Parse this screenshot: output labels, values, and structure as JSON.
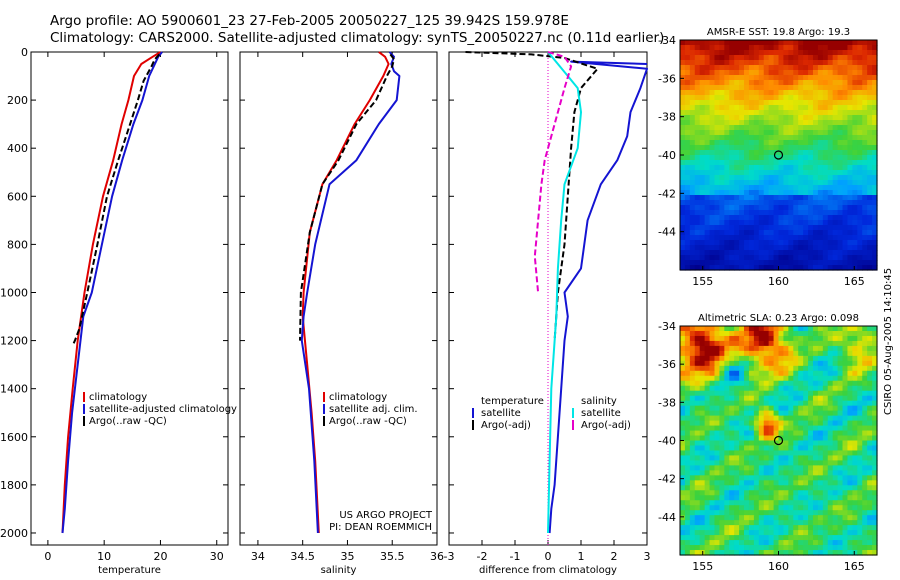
{
  "header": {
    "line1": "Argo profile: AO 5900601_23 27-Feb-2005 20050227_125 39.942S 159.978E",
    "line2": "Climatology: CARS2000. Satellite-adjusted climatology: synTS_20050227.nc (0.11d earlier)"
  },
  "credit": "CSIRO 05-Aug-2005 14:10:45",
  "project": {
    "line1": "US ARGO PROJECT",
    "line2": "PI: DEAN ROEMMICH"
  },
  "colors": {
    "climatology": "#e00000",
    "satellite": "#1414d2",
    "argo": "#000000",
    "salinity_sat": "#00e6e6",
    "salinity_argo": "#e600c8"
  },
  "chart_data": [
    {
      "type": "line",
      "id": "temperature",
      "xlabel": "temperature",
      "xlim": [
        -3,
        32
      ],
      "ylim": [
        0,
        2050
      ],
      "y_reversed": true,
      "xticks": [
        0,
        10,
        20,
        30
      ],
      "yticks": [
        0,
        200,
        400,
        600,
        800,
        1000,
        1200,
        1400,
        1600,
        1800,
        2000
      ],
      "legend": [
        "climatology",
        "satellite-adjusted climatology",
        "Argo(..raw -QC)"
      ],
      "series": [
        {
          "name": "climatology",
          "color": "#e00000",
          "dash": "",
          "x": [
            20.0,
            18.6,
            16.6,
            15.3,
            14.3,
            13.1,
            11.6,
            9.8,
            8.0,
            6.5,
            5.3,
            4.4,
            3.6,
            3.0,
            2.6
          ],
          "y": [
            0,
            20,
            50,
            100,
            200,
            300,
            450,
            600,
            800,
            1000,
            1200,
            1400,
            1600,
            1800,
            2000
          ]
        },
        {
          "name": "satellite-adjusted climatology",
          "color": "#1414d2",
          "dash": "",
          "x": [
            20.3,
            19.6,
            19.2,
            18.0,
            16.8,
            15.2,
            13.2,
            11.4,
            9.6,
            7.8,
            6.3,
            5.3,
            4.3,
            3.6,
            3.0,
            2.6
          ],
          "y": [
            0,
            20,
            40,
            100,
            200,
            300,
            450,
            600,
            800,
            1000,
            1100,
            1300,
            1500,
            1700,
            1900,
            2000
          ]
        },
        {
          "name": "Argo(..raw -QC)",
          "color": "#000000",
          "dash": "6,3",
          "x": [
            19.8,
            19.0,
            18.4,
            17.0,
            16.0,
            14.6,
            12.5,
            10.5,
            8.8,
            7.0,
            5.6,
            4.8,
            4.4
          ],
          "y": [
            10,
            30,
            60,
            120,
            200,
            300,
            450,
            600,
            800,
            1000,
            1150,
            1200,
            1220
          ]
        }
      ]
    },
    {
      "type": "line",
      "id": "salinity",
      "xlabel": "salinity",
      "xlim": [
        33.8,
        36.0
      ],
      "ylim": [
        0,
        2050
      ],
      "y_reversed": true,
      "xticks": [
        34,
        34.5,
        35,
        35.5,
        36
      ],
      "legend": [
        "climatology",
        "satellite adj. clim.",
        "Argo(..raw -QC)"
      ],
      "series": [
        {
          "name": "climatology",
          "color": "#e00000",
          "dash": "",
          "x": [
            35.35,
            35.42,
            35.46,
            35.4,
            35.25,
            35.08,
            34.88,
            34.72,
            34.58,
            34.51,
            34.5,
            34.55,
            34.6,
            34.64,
            34.68
          ],
          "y": [
            0,
            20,
            50,
            100,
            200,
            300,
            450,
            550,
            750,
            1000,
            1100,
            1300,
            1500,
            1700,
            2000
          ]
        },
        {
          "name": "satellite adj. clim.",
          "color": "#1414d2",
          "dash": "",
          "x": [
            35.47,
            35.52,
            35.49,
            35.52,
            35.58,
            35.55,
            35.35,
            35.1,
            34.8,
            34.64,
            34.55,
            34.51,
            34.49,
            34.57,
            34.63,
            34.67
          ],
          "y": [
            0,
            20,
            50,
            80,
            100,
            200,
            300,
            450,
            550,
            800,
            1000,
            1100,
            1200,
            1400,
            1700,
            2000
          ]
        },
        {
          "name": "Argo(..raw -QC)",
          "color": "#000000",
          "dash": "6,3",
          "x": [
            35.48,
            35.52,
            35.5,
            35.44,
            35.32,
            35.1,
            34.9,
            34.72,
            34.58,
            34.48,
            34.47
          ],
          "y": [
            10,
            30,
            60,
            100,
            200,
            300,
            450,
            550,
            750,
            1000,
            1200
          ]
        }
      ]
    },
    {
      "type": "line",
      "id": "difference",
      "xlabel": "difference from climatology",
      "xlim": [
        -3,
        3
      ],
      "ylim": [
        0,
        2050
      ],
      "y_reversed": true,
      "xticks": [
        -3,
        -2,
        -1,
        0,
        1,
        2,
        3
      ],
      "legend_left": {
        "title": "temperature",
        "items": [
          "satellite",
          "Argo(-adj)"
        ]
      },
      "legend_right": {
        "title": "salinity",
        "items": [
          "satellite",
          "Argo(-adj)"
        ]
      },
      "series": [
        {
          "name": "temperature satellite",
          "color": "#1414d2",
          "dash": "",
          "x": [
            3.0,
            1.8,
            0.7,
            3.0,
            2.8,
            2.5,
            2.4,
            2.1,
            1.6,
            1.2,
            1.0,
            0.5,
            0.6,
            0.5,
            0.4,
            0.3,
            0.2,
            0.1,
            0.05
          ],
          "y": [
            50,
            45,
            40,
            70,
            150,
            250,
            350,
            450,
            550,
            700,
            900,
            1000,
            1100,
            1200,
            1400,
            1600,
            1800,
            1900,
            2000
          ]
        },
        {
          "name": "temperature Argo(-adj)",
          "color": "#000000",
          "dash": "6,3",
          "x": [
            -2.5,
            -0.5,
            0.5,
            1.5,
            1.0,
            0.8,
            0.7,
            0.6,
            0.5,
            0.3,
            0.2
          ],
          "y": [
            0,
            10,
            25,
            70,
            150,
            250,
            400,
            600,
            800,
            1000,
            1200
          ]
        },
        {
          "name": "salinity satellite",
          "color": "#00e6e6",
          "dash": "",
          "x": [
            0.0,
            0.3,
            0.6,
            0.9,
            1.0,
            0.9,
            0.5,
            0.4,
            0.3,
            0.25,
            0.1,
            0.05,
            0.0
          ],
          "y": [
            0,
            50,
            100,
            150,
            250,
            400,
            550,
            700,
            900,
            1100,
            1400,
            1700,
            2000
          ]
        },
        {
          "name": "salinity Argo(-adj)",
          "color": "#e600c8",
          "dash": "6,3",
          "x": [
            0.0,
            0.5,
            0.7,
            0.5,
            0.3,
            0.1,
            -0.1,
            -0.2,
            -0.3,
            -0.4,
            -0.3
          ],
          "y": [
            0,
            20,
            60,
            150,
            250,
            350,
            450,
            550,
            700,
            850,
            1000
          ]
        }
      ]
    },
    {
      "type": "heatmap",
      "id": "sst_map",
      "title": "AMSR-E SST: 19.8 Argo: 19.3",
      "xlim": [
        153.5,
        166.5
      ],
      "ylim": [
        -46,
        -34
      ],
      "xticks": [
        155,
        160,
        165
      ],
      "yticks": [
        -34,
        -36,
        -38,
        -40,
        -42,
        -44
      ],
      "argo_marker": [
        160,
        -40
      ]
    },
    {
      "type": "heatmap",
      "id": "sla_map",
      "title": "Altimetric SLA: 0.23 Argo: 0.098",
      "xlim": [
        153.5,
        166.5
      ],
      "ylim": [
        -46,
        -34
      ],
      "xticks": [
        155,
        160,
        165
      ],
      "yticks": [
        -34,
        -36,
        -38,
        -40,
        -42,
        -44
      ],
      "argo_marker": [
        160,
        -40
      ]
    }
  ]
}
